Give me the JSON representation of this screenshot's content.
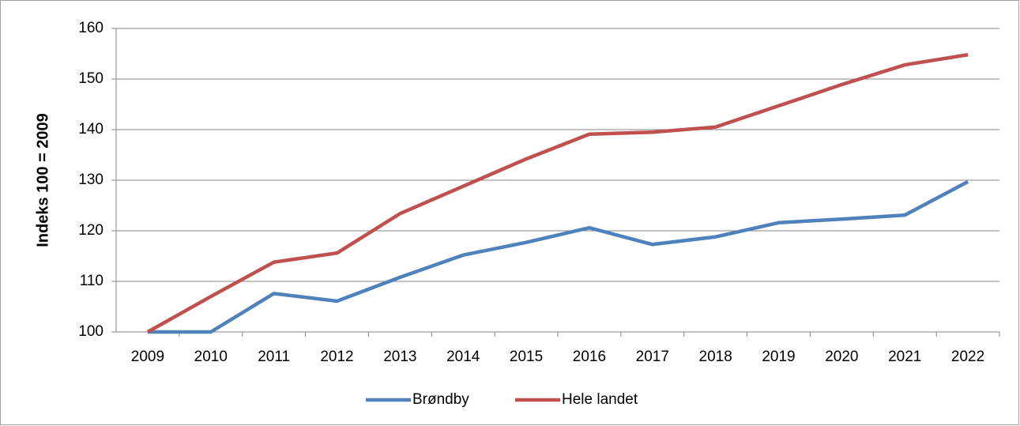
{
  "chart_data": {
    "type": "line",
    "y_label": "Indeks 100 = 2009",
    "categories": [
      "2009",
      "2010",
      "2011",
      "2012",
      "2013",
      "2014",
      "2015",
      "2016",
      "2017",
      "2018",
      "2019",
      "2020",
      "2021",
      "2022"
    ],
    "series": [
      {
        "name": "Brøndby",
        "color": "#4f81bd",
        "values": [
          100,
          100,
          107.6,
          106.1,
          110.8,
          115.2,
          117.7,
          120.6,
          117.3,
          118.8,
          121.6,
          122.3,
          123.1,
          129.7
        ]
      },
      {
        "name": "Hele landet",
        "color": "#c0504d",
        "values": [
          100,
          107.0,
          113.8,
          115.6,
          123.4,
          128.8,
          134.2,
          139.1,
          139.5,
          140.5,
          144.7,
          148.9,
          152.8,
          154.8
        ]
      }
    ],
    "ylim": [
      100,
      160
    ],
    "yticks": [
      100,
      110,
      120,
      130,
      140,
      150,
      160
    ],
    "grid": true,
    "legend": "bottom"
  }
}
